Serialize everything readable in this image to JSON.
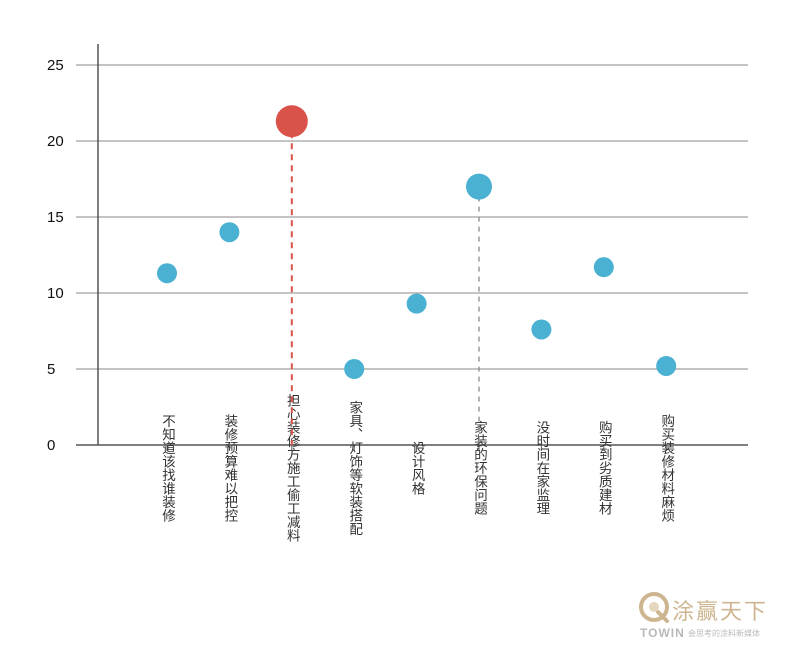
{
  "chart_data": {
    "type": "scatter",
    "categories": [
      "不知道该找谁装修",
      "装修预算难以把控",
      "担心装修方施工偷工减料",
      "家具、灯饰等软装搭配",
      "设计风格",
      "家装的环保问题",
      "没时间在家监理",
      "购买到劣质建材",
      "购买装修材料麻烦"
    ],
    "values": [
      11.3,
      14.0,
      21.3,
      5.0,
      9.3,
      17.0,
      7.6,
      11.7,
      5.2
    ],
    "highlight": [
      2,
      5
    ],
    "ylim": [
      0,
      25
    ],
    "yticks": [
      0,
      5,
      10,
      15,
      20,
      25
    ],
    "grid": true,
    "colors": {
      "point": "#4ab1d2",
      "highlight_point": "#d9534a",
      "gridline": "#888888",
      "axis": "#555555",
      "guide_highlight": "#d9534a",
      "guide_secondary": "#8a8a8a"
    }
  },
  "watermark": {
    "brand": "涂赢天下",
    "en": "TOWIN",
    "slogan": "会思考的涂料新媒体",
    "color": "#cdb590"
  }
}
